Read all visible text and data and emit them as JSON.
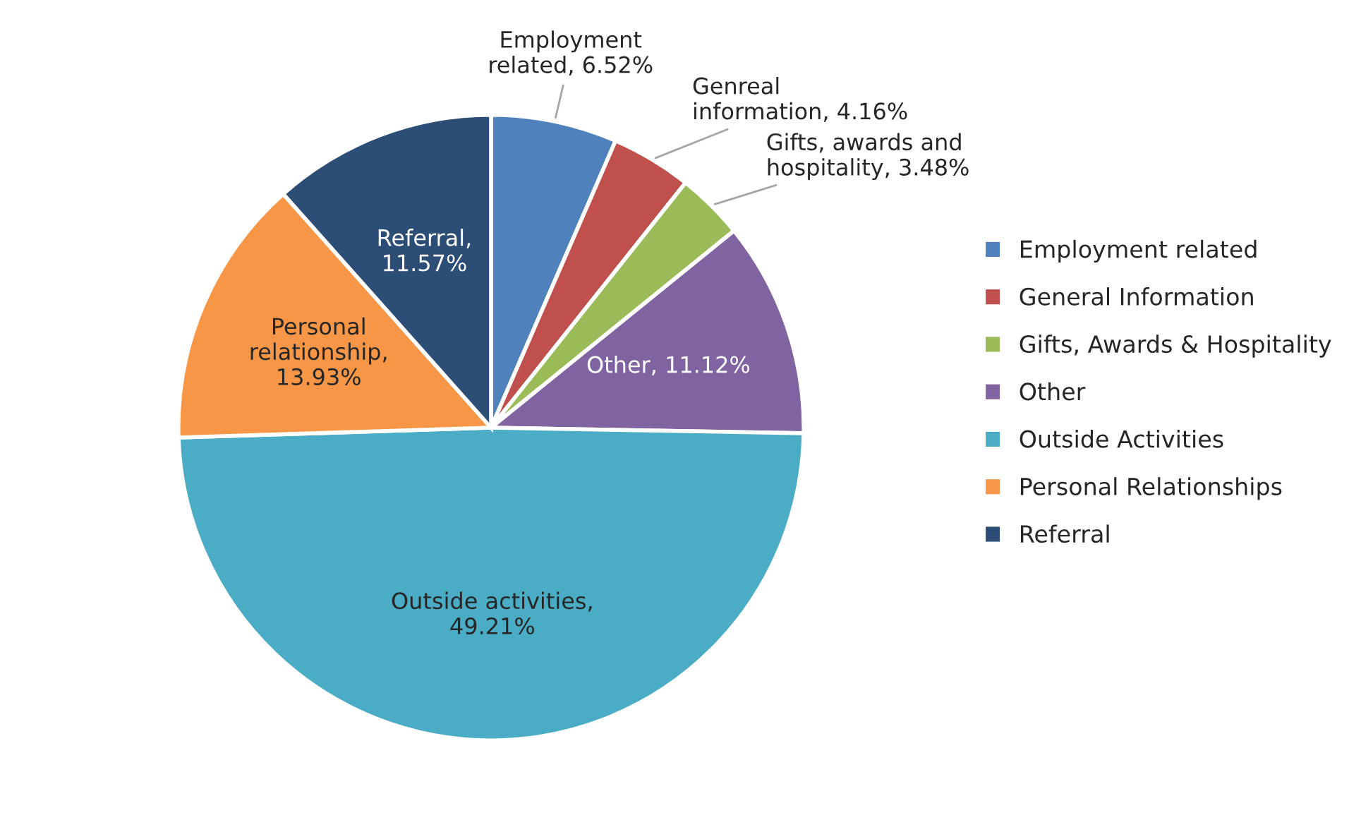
{
  "chart_data": {
    "type": "pie",
    "categories": [
      "Employment related",
      "General Information",
      "Gifts, Awards & Hospitality",
      "Other",
      "Outside Activities",
      "Personal Relationships",
      "Referral"
    ],
    "values": [
      6.52,
      4.16,
      3.48,
      11.12,
      49.21,
      13.93,
      11.57
    ],
    "colors": [
      "#4f81bd",
      "#c0504d",
      "#9bbb59",
      "#8064a2",
      "#4bacc6",
      "#f79646",
      "#2c4d75"
    ],
    "value_labels": [
      "Employment\nrelated, 6.52%",
      "Genreal\ninformation, 4.16%",
      "Gifts, awards and\nhospitality, 3.48%",
      "Other, 11.12%",
      "Outside activities,\n49.21%",
      "Personal\nrelationship,\n13.93%",
      "Referral,\n11.57%"
    ],
    "legend": "right"
  }
}
